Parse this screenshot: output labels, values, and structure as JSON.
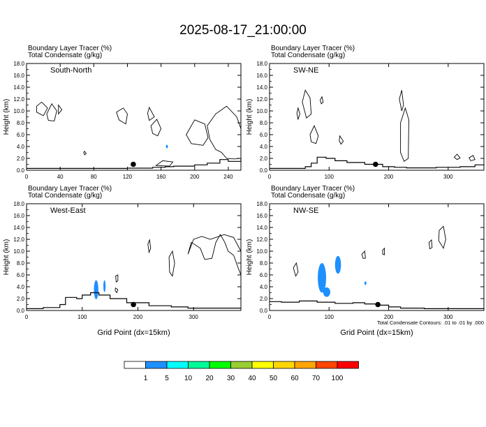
{
  "figure": {
    "title": "2025-08-17_21:00:00",
    "header_line1": "Boundary Layer Tracer   (%)",
    "header_line2": "Total Condensate   (g/kg)",
    "xlabel": "Grid Point (dx=15km)",
    "ylabel": "Height (km)",
    "contour_note": "Total Condensate Contours: .01 to .01 by .000"
  },
  "colorbar": {
    "colors": [
      "#ffffff",
      "#1e90ff",
      "#00ffff",
      "#00fa9a",
      "#00ff00",
      "#9acd32",
      "#ffff00",
      "#ffd700",
      "#ffa500",
      "#ff4500",
      "#ff0000"
    ],
    "labels": [
      "1",
      "5",
      "10",
      "20",
      "30",
      "40",
      "50",
      "60",
      "70",
      "100"
    ]
  },
  "chart_data": [
    {
      "type": "contour",
      "panel": "South-North",
      "title": "South-North",
      "xlim": [
        0,
        255
      ],
      "ylim": [
        0,
        18
      ],
      "xticks": [
        0,
        40,
        80,
        120,
        160,
        200,
        240
      ],
      "yticks": [
        "0.0",
        "2.0",
        "4.0",
        "6.0",
        "8.0",
        "10.0",
        "12.0",
        "14.0",
        "16.0",
        "18.0"
      ],
      "marker": {
        "x": 127,
        "y": 1.0
      },
      "terrain": [
        [
          0,
          0.3
        ],
        [
          40,
          0.3
        ],
        [
          80,
          0.3
        ],
        [
          120,
          0.35
        ],
        [
          150,
          0.5
        ],
        [
          165,
          0.6
        ],
        [
          175,
          0.7
        ],
        [
          200,
          0.9
        ],
        [
          215,
          1.2
        ],
        [
          230,
          1.8
        ],
        [
          240,
          1.5
        ],
        [
          255,
          2.0
        ]
      ],
      "shading": [
        {
          "x": 167,
          "y": 4.0,
          "rx": 1,
          "ry": 0.3,
          "color": "#1e90ff"
        }
      ],
      "contours": [
        [
          [
            12,
            10.8
          ],
          [
            18,
            11.5
          ],
          [
            25,
            10.5
          ],
          [
            20,
            9.2
          ],
          [
            12,
            9.8
          ],
          [
            12,
            10.8
          ]
        ],
        [
          [
            24,
            9.5
          ],
          [
            30,
            11.2
          ],
          [
            36,
            10.0
          ],
          [
            33,
            8.3
          ],
          [
            26,
            8.4
          ],
          [
            24,
            9.5
          ]
        ],
        [
          [
            38,
            11.0
          ],
          [
            42,
            10.2
          ],
          [
            38,
            9.5
          ],
          [
            38,
            11.0
          ]
        ],
        [
          [
            107,
            9.8
          ],
          [
            115,
            10.5
          ],
          [
            120,
            9.5
          ],
          [
            118,
            7.8
          ],
          [
            110,
            8.5
          ],
          [
            107,
            9.8
          ]
        ],
        [
          [
            146,
            10.6
          ],
          [
            152,
            9.0
          ],
          [
            146,
            8.4
          ],
          [
            144,
            9.6
          ],
          [
            146,
            10.6
          ]
        ],
        [
          [
            148,
            7.5
          ],
          [
            155,
            8.6
          ],
          [
            160,
            7.0
          ],
          [
            156,
            5.8
          ],
          [
            150,
            6.2
          ],
          [
            148,
            7.5
          ]
        ],
        [
          [
            190,
            6.0
          ],
          [
            200,
            8.5
          ],
          [
            212,
            7.8
          ],
          [
            216,
            5.5
          ],
          [
            210,
            4.2
          ],
          [
            196,
            4.5
          ],
          [
            190,
            6.0
          ]
        ],
        [
          [
            215,
            7.5
          ],
          [
            225,
            9.5
          ],
          [
            238,
            10.8
          ],
          [
            250,
            9.0
          ],
          [
            255,
            7.0
          ],
          [
            255,
            2.0
          ],
          [
            247,
            1.9
          ],
          [
            238,
            2.0
          ],
          [
            232,
            3.0
          ],
          [
            225,
            3.5
          ],
          [
            218,
            5.2
          ],
          [
            215,
            7.5
          ]
        ],
        [
          [
            69,
            3.2
          ],
          [
            71,
            2.8
          ],
          [
            69,
            2.6
          ],
          [
            68,
            3.0
          ],
          [
            69,
            3.2
          ]
        ],
        [
          [
            154,
            0.8
          ],
          [
            162,
            1.6
          ],
          [
            174,
            1.4
          ],
          [
            170,
            0.7
          ],
          [
            154,
            0.8
          ]
        ]
      ]
    },
    {
      "type": "contour",
      "panel": "SW-NE",
      "title": "SW-NE",
      "xlim": [
        0,
        360
      ],
      "ylim": [
        0,
        18
      ],
      "xticks": [
        0,
        100,
        200,
        300
      ],
      "yticks": [
        "0.0",
        "2.0",
        "4.0",
        "6.0",
        "8.0",
        "10.0",
        "12.0",
        "14.0",
        "16.0",
        "18.0"
      ],
      "marker": {
        "x": 178,
        "y": 1.0
      },
      "terrain": [
        [
          0,
          0.3
        ],
        [
          40,
          0.3
        ],
        [
          60,
          0.6
        ],
        [
          70,
          1.2
        ],
        [
          80,
          2.2
        ],
        [
          95,
          2.0
        ],
        [
          110,
          1.6
        ],
        [
          130,
          1.3
        ],
        [
          160,
          1.0
        ],
        [
          190,
          0.6
        ],
        [
          210,
          0.5
        ],
        [
          230,
          0.4
        ],
        [
          280,
          0.5
        ],
        [
          320,
          0.6
        ],
        [
          345,
          0.9
        ],
        [
          360,
          1.0
        ]
      ],
      "shading": [],
      "contours": [
        [
          [
            55,
            11.5
          ],
          [
            60,
            13.5
          ],
          [
            68,
            12.2
          ],
          [
            70,
            9.5
          ],
          [
            62,
            8.8
          ],
          [
            55,
            11.5
          ]
        ],
        [
          [
            48,
            10.5
          ],
          [
            51,
            9.5
          ],
          [
            48,
            8.6
          ],
          [
            46,
            9.6
          ],
          [
            48,
            10.5
          ]
        ],
        [
          [
            85,
            11.8
          ],
          [
            88,
            12.4
          ],
          [
            90,
            11.5
          ],
          [
            87,
            11.2
          ],
          [
            85,
            11.8
          ]
        ],
        [
          [
            68,
            6.0
          ],
          [
            75,
            7.5
          ],
          [
            82,
            5.8
          ],
          [
            78,
            4.5
          ],
          [
            70,
            4.8
          ],
          [
            68,
            6.0
          ]
        ],
        [
          [
            118,
            5.8
          ],
          [
            124,
            4.9
          ],
          [
            120,
            4.4
          ],
          [
            117,
            5.0
          ],
          [
            118,
            5.8
          ]
        ],
        [
          [
            218,
            12.0
          ],
          [
            222,
            13.5
          ],
          [
            225,
            11.0
          ],
          [
            222,
            10.0
          ],
          [
            218,
            12.0
          ]
        ],
        [
          [
            220,
            8.0
          ],
          [
            228,
            10.5
          ],
          [
            234,
            8.5
          ],
          [
            233,
            2.0
          ],
          [
            226,
            1.5
          ],
          [
            220,
            3.0
          ],
          [
            220,
            8.0
          ]
        ],
        [
          [
            310,
            2.2
          ],
          [
            315,
            2.7
          ],
          [
            320,
            2.1
          ],
          [
            315,
            1.8
          ],
          [
            310,
            2.2
          ]
        ],
        [
          [
            335,
            2.1
          ],
          [
            342,
            2.5
          ],
          [
            345,
            1.8
          ],
          [
            338,
            1.6
          ],
          [
            335,
            2.1
          ]
        ]
      ]
    },
    {
      "type": "contour",
      "panel": "West-East",
      "title": "West-East",
      "xlim": [
        0,
        385
      ],
      "ylim": [
        0,
        18
      ],
      "xticks": [
        0,
        100,
        200,
        300
      ],
      "yticks": [
        "0.0",
        "2.0",
        "4.0",
        "6.0",
        "8.0",
        "10.0",
        "12.0",
        "14.0",
        "16.0",
        "18.0"
      ],
      "marker": {
        "x": 192,
        "y": 1.0
      },
      "terrain": [
        [
          0,
          0.3
        ],
        [
          30,
          0.5
        ],
        [
          60,
          1.0
        ],
        [
          70,
          2.2
        ],
        [
          90,
          2.0
        ],
        [
          100,
          2.6
        ],
        [
          115,
          3.0
        ],
        [
          130,
          2.6
        ],
        [
          150,
          2.0
        ],
        [
          180,
          1.3
        ],
        [
          220,
          0.8
        ],
        [
          260,
          0.6
        ],
        [
          290,
          0.4
        ],
        [
          330,
          0.4
        ],
        [
          385,
          0.4
        ]
      ],
      "shading": [
        {
          "x": 125,
          "y": 3.5,
          "rx": 4,
          "ry": 1.6,
          "color": "#1e90ff"
        },
        {
          "x": 140,
          "y": 4.1,
          "rx": 2,
          "ry": 1.0,
          "color": "#1e90ff"
        }
      ],
      "contours": [
        [
          [
            218,
            11.2
          ],
          [
            221,
            11.9
          ],
          [
            223,
            10.5
          ],
          [
            220,
            9.8
          ],
          [
            218,
            11.2
          ]
        ],
        [
          [
            256,
            9.0
          ],
          [
            262,
            10.0
          ],
          [
            266,
            8.0
          ],
          [
            262,
            5.8
          ],
          [
            257,
            6.5
          ],
          [
            256,
            9.0
          ]
        ],
        [
          [
            290,
            9.5
          ],
          [
            296,
            11.5
          ],
          [
            312,
            10.5
          ],
          [
            320,
            8.6
          ],
          [
            333,
            8.8
          ],
          [
            340,
            11.5
          ],
          [
            348,
            12.8
          ],
          [
            356,
            11.5
          ],
          [
            362,
            10.0
          ],
          [
            372,
            9.3
          ],
          [
            380,
            7.2
          ],
          [
            385,
            6.0
          ],
          [
            385,
            10.0
          ],
          [
            372,
            12.3
          ],
          [
            355,
            12.8
          ],
          [
            330,
            12.0
          ],
          [
            315,
            12.5
          ],
          [
            300,
            12.0
          ],
          [
            290,
            9.5
          ]
        ],
        [
          [
            160,
            5.8
          ],
          [
            164,
            6.0
          ],
          [
            164,
            5.0
          ],
          [
            161,
            4.8
          ],
          [
            160,
            5.8
          ]
        ],
        [
          [
            160,
            3.8
          ],
          [
            164,
            3.5
          ],
          [
            162,
            3.0
          ],
          [
            159,
            3.4
          ],
          [
            160,
            3.8
          ]
        ]
      ]
    },
    {
      "type": "contour",
      "panel": "NW-SE",
      "title": "NW-SE",
      "xlim": [
        0,
        360
      ],
      "ylim": [
        0,
        18
      ],
      "xticks": [
        0,
        100,
        200,
        300
      ],
      "yticks": [
        "0.0",
        "2.0",
        "4.0",
        "6.0",
        "8.0",
        "10.0",
        "12.0",
        "14.0",
        "16.0",
        "18.0"
      ],
      "marker": {
        "x": 182,
        "y": 1.0
      },
      "terrain": [
        [
          0,
          1.5
        ],
        [
          20,
          1.4
        ],
        [
          50,
          1.6
        ],
        [
          80,
          1.4
        ],
        [
          110,
          1.2
        ],
        [
          140,
          1.3
        ],
        [
          160,
          1.1
        ],
        [
          180,
          0.9
        ],
        [
          200,
          0.6
        ],
        [
          220,
          0.4
        ],
        [
          260,
          0.3
        ],
        [
          300,
          0.3
        ],
        [
          360,
          0.4
        ]
      ],
      "shading": [
        {
          "x": 88,
          "y": 5.5,
          "rx": 7,
          "ry": 2.5,
          "color": "#1e90ff"
        },
        {
          "x": 96,
          "y": 3.1,
          "rx": 6,
          "ry": 0.8,
          "color": "#1e90ff"
        },
        {
          "x": 115,
          "y": 7.7,
          "rx": 5,
          "ry": 1.5,
          "color": "#1e90ff"
        },
        {
          "x": 161,
          "y": 4.6,
          "rx": 1,
          "ry": 0.3,
          "color": "#1e90ff"
        }
      ],
      "contours": [
        [
          [
            285,
            13.5
          ],
          [
            292,
            14.2
          ],
          [
            296,
            12.0
          ],
          [
            292,
            10.5
          ],
          [
            284,
            11.8
          ],
          [
            285,
            13.5
          ]
        ],
        [
          [
            268,
            11.5
          ],
          [
            272,
            11.9
          ],
          [
            273,
            10.6
          ],
          [
            269,
            10.4
          ],
          [
            268,
            11.5
          ]
        ],
        [
          [
            190,
            10.2
          ],
          [
            193,
            10.5
          ],
          [
            193,
            9.4
          ],
          [
            190,
            9.5
          ],
          [
            190,
            10.2
          ]
        ],
        [
          [
            40,
            7.2
          ],
          [
            45,
            8.0
          ],
          [
            48,
            6.5
          ],
          [
            44,
            5.8
          ],
          [
            40,
            7.2
          ]
        ],
        [
          [
            155,
            9.5
          ],
          [
            160,
            10.0
          ],
          [
            161,
            8.8
          ],
          [
            157,
            8.8
          ],
          [
            155,
            9.5
          ]
        ]
      ]
    }
  ]
}
